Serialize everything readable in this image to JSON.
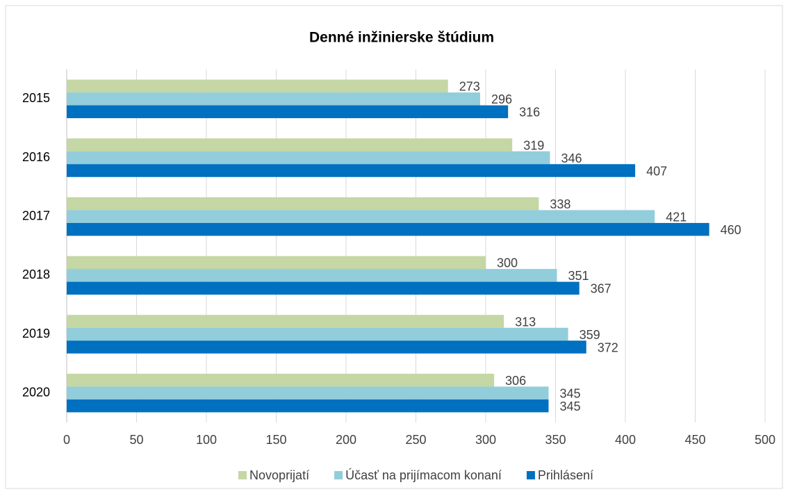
{
  "chart_data": {
    "type": "hbar",
    "title": "Denné inžinierske štúdium",
    "categories": [
      "2015",
      "2016",
      "2017",
      "2018",
      "2019",
      "2020"
    ],
    "series": [
      {
        "name": "Novoprijatí",
        "color": "#c4d7a4",
        "values": [
          273,
          319,
          338,
          300,
          313,
          306
        ]
      },
      {
        "name": "Účasť na prijímacom konaní",
        "color": "#92cddc",
        "values": [
          296,
          346,
          421,
          351,
          359,
          345
        ]
      },
      {
        "name": "Prihlásení",
        "color": "#0070c0",
        "values": [
          316,
          407,
          460,
          367,
          372,
          345
        ]
      }
    ],
    "xlim": [
      0,
      500
    ],
    "xticks": [
      0,
      50,
      100,
      150,
      200,
      250,
      300,
      350,
      400,
      450,
      500
    ],
    "grid": true,
    "legend": "bottom"
  }
}
